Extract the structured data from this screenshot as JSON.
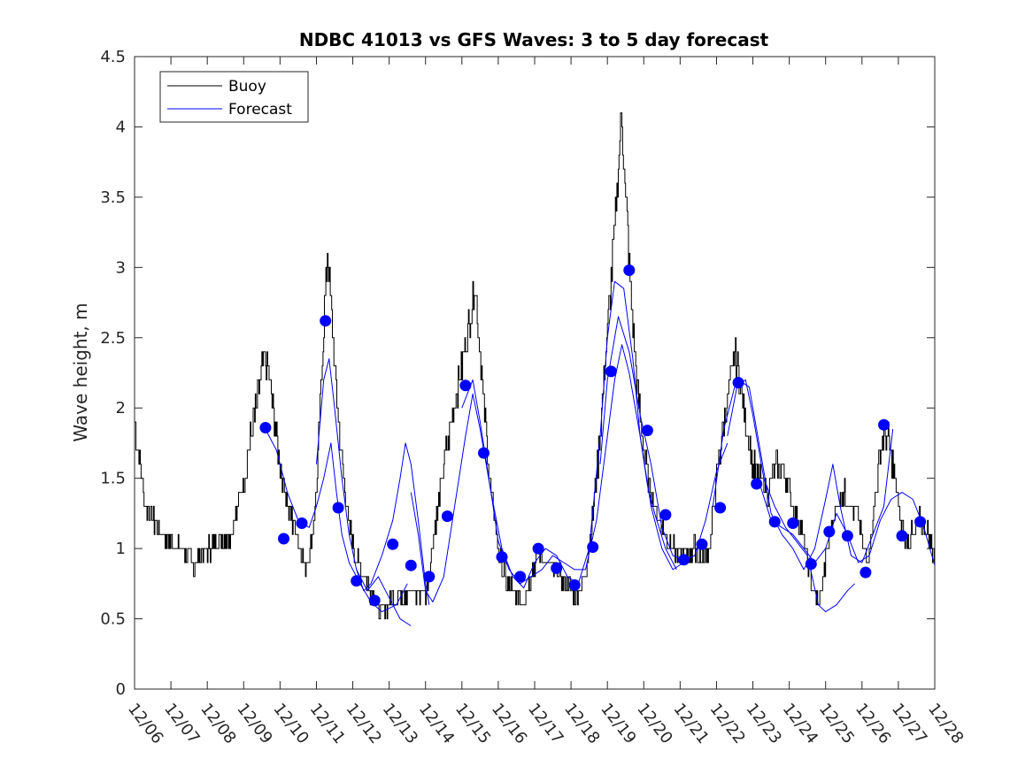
{
  "chart_data": {
    "type": "line",
    "title": "NDBC 41013 vs GFS Waves: 3 to 5 day forecast",
    "xlabel": "",
    "ylabel": "Wave height, m",
    "xlim": [
      0,
      22
    ],
    "ylim": [
      0,
      4.5
    ],
    "yticks": [
      0,
      0.5,
      1,
      1.5,
      2,
      2.5,
      3,
      3.5,
      4,
      4.5
    ],
    "xtick_labels": [
      "12/06",
      "12/07",
      "12/08",
      "12/09",
      "12/10",
      "12/11",
      "12/12",
      "12/13",
      "12/14",
      "12/15",
      "12/16",
      "12/17",
      "12/18",
      "12/19",
      "12/20",
      "12/21",
      "12/22",
      "12/23",
      "12/24",
      "12/25",
      "12/26",
      "12/27",
      "12/28"
    ],
    "legend": {
      "position": "top-left",
      "entries": [
        {
          "label": "Buoy",
          "color": "#000000"
        },
        {
          "label": "Forecast",
          "color": "#0000ff"
        }
      ]
    },
    "colors": {
      "buoy": "#000000",
      "forecast": "#0000ff",
      "markers": "#0000ff",
      "axis": "#262626"
    },
    "buoy_keypoints": [
      [
        0.0,
        1.9
      ],
      [
        0.1,
        1.7
      ],
      [
        0.2,
        1.5
      ],
      [
        0.3,
        1.3
      ],
      [
        0.5,
        1.2
      ],
      [
        0.8,
        1.1
      ],
      [
        1.0,
        1.05
      ],
      [
        1.3,
        1.0
      ],
      [
        1.5,
        0.95
      ],
      [
        1.6,
        0.85
      ],
      [
        1.8,
        0.95
      ],
      [
        2.0,
        1.0
      ],
      [
        2.3,
        1.05
      ],
      [
        2.6,
        1.1
      ],
      [
        2.8,
        1.25
      ],
      [
        3.0,
        1.5
      ],
      [
        3.2,
        1.8
      ],
      [
        3.4,
        2.1
      ],
      [
        3.55,
        2.35
      ],
      [
        3.7,
        2.2
      ],
      [
        3.85,
        1.9
      ],
      [
        4.0,
        1.6
      ],
      [
        4.2,
        1.3
      ],
      [
        4.4,
        1.15
      ],
      [
        4.6,
        1.0
      ],
      [
        4.7,
        0.85
      ],
      [
        4.8,
        0.95
      ],
      [
        5.0,
        1.4
      ],
      [
        5.1,
        2.0
      ],
      [
        5.2,
        2.6
      ],
      [
        5.3,
        3.1
      ],
      [
        5.4,
        2.7
      ],
      [
        5.55,
        2.1
      ],
      [
        5.7,
        1.6
      ],
      [
        5.85,
        1.25
      ],
      [
        6.0,
        1.0
      ],
      [
        6.2,
        0.85
      ],
      [
        6.5,
        0.7
      ],
      [
        6.7,
        0.55
      ],
      [
        6.9,
        0.6
      ],
      [
        7.2,
        0.65
      ],
      [
        7.5,
        0.7
      ],
      [
        7.8,
        0.68
      ],
      [
        8.0,
        0.7
      ],
      [
        8.1,
        0.85
      ],
      [
        8.2,
        1.05
      ],
      [
        8.35,
        1.3
      ],
      [
        8.5,
        1.6
      ],
      [
        8.65,
        1.8
      ],
      [
        8.8,
        2.05
      ],
      [
        9.0,
        2.3
      ],
      [
        9.2,
        2.6
      ],
      [
        9.35,
        2.9
      ],
      [
        9.5,
        2.4
      ],
      [
        9.65,
        1.85
      ],
      [
        9.8,
        1.4
      ],
      [
        9.95,
        1.1
      ],
      [
        10.1,
        0.85
      ],
      [
        10.3,
        0.72
      ],
      [
        10.5,
        0.68
      ],
      [
        10.7,
        0.65
      ],
      [
        10.9,
        0.8
      ],
      [
        11.1,
        1.0
      ],
      [
        11.3,
        0.9
      ],
      [
        11.5,
        0.85
      ],
      [
        11.7,
        0.82
      ],
      [
        11.9,
        0.72
      ],
      [
        12.1,
        0.68
      ],
      [
        12.3,
        0.72
      ],
      [
        12.5,
        1.0
      ],
      [
        12.7,
        1.5
      ],
      [
        12.9,
        2.2
      ],
      [
        13.1,
        2.9
      ],
      [
        13.25,
        3.5
      ],
      [
        13.38,
        4.1
      ],
      [
        13.5,
        3.5
      ],
      [
        13.65,
        2.8
      ],
      [
        13.8,
        2.2
      ],
      [
        14.0,
        1.7
      ],
      [
        14.2,
        1.4
      ],
      [
        14.4,
        1.2
      ],
      [
        14.6,
        1.1
      ],
      [
        14.8,
        1.0
      ],
      [
        15.0,
        0.95
      ],
      [
        15.2,
        0.95
      ],
      [
        15.4,
        1.0
      ],
      [
        15.6,
        0.9
      ],
      [
        15.8,
        1.0
      ],
      [
        16.0,
        1.5
      ],
      [
        16.2,
        1.9
      ],
      [
        16.4,
        2.2
      ],
      [
        16.5,
        2.4
      ],
      [
        16.65,
        2.2
      ],
      [
        16.8,
        1.9
      ],
      [
        17.0,
        1.6
      ],
      [
        17.2,
        1.5
      ],
      [
        17.4,
        1.4
      ],
      [
        17.6,
        1.55
      ],
      [
        17.8,
        1.6
      ],
      [
        17.95,
        1.45
      ],
      [
        18.1,
        1.3
      ],
      [
        18.3,
        1.15
      ],
      [
        18.5,
        0.95
      ],
      [
        18.65,
        0.7
      ],
      [
        18.8,
        0.6
      ],
      [
        18.95,
        0.8
      ],
      [
        19.1,
        1.1
      ],
      [
        19.3,
        1.3
      ],
      [
        19.5,
        1.4
      ],
      [
        19.7,
        1.3
      ],
      [
        19.9,
        1.2
      ],
      [
        20.0,
        1.05
      ],
      [
        20.15,
        0.9
      ],
      [
        20.3,
        1.2
      ],
      [
        20.45,
        1.6
      ],
      [
        20.6,
        1.85
      ],
      [
        20.75,
        1.75
      ],
      [
        20.9,
        1.5
      ],
      [
        21.05,
        1.2
      ],
      [
        21.2,
        1.05
      ],
      [
        21.4,
        1.1
      ],
      [
        21.6,
        1.2
      ],
      [
        21.8,
        1.1
      ],
      [
        22.0,
        0.95
      ]
    ],
    "forecast_series": [
      {
        "name": "Forecast",
        "points": [
          [
            3.6,
            1.85
          ],
          [
            3.9,
            1.7
          ],
          [
            4.2,
            1.4
          ],
          [
            4.5,
            1.2
          ],
          [
            4.8,
            1.15
          ],
          [
            5.0,
            1.3
          ],
          [
            5.2,
            1.5
          ],
          [
            5.4,
            1.75
          ],
          [
            5.55,
            1.4
          ],
          [
            5.7,
            1.1
          ],
          [
            5.9,
            0.9
          ],
          [
            6.2,
            0.75
          ],
          [
            6.5,
            0.62
          ],
          [
            6.8,
            0.55
          ],
          [
            7.2,
            0.6
          ],
          [
            7.5,
            0.75
          ]
        ]
      },
      {
        "name": "Forecast",
        "points": [
          [
            5.0,
            1.6
          ],
          [
            5.2,
            2.2
          ],
          [
            5.35,
            2.35
          ],
          [
            5.5,
            2.0
          ],
          [
            5.7,
            1.5
          ],
          [
            5.9,
            1.1
          ],
          [
            6.1,
            0.85
          ],
          [
            6.3,
            0.7
          ],
          [
            6.5,
            0.75
          ],
          [
            6.8,
            0.95
          ],
          [
            7.1,
            1.2
          ],
          [
            7.3,
            1.5
          ],
          [
            7.45,
            1.75
          ],
          [
            7.6,
            1.6
          ],
          [
            7.8,
            1.2
          ],
          [
            8.0,
            0.75
          ],
          [
            8.1,
            0.6
          ]
        ]
      },
      {
        "name": "Forecast",
        "points": [
          [
            6.1,
            0.85
          ],
          [
            6.4,
            0.7
          ],
          [
            6.7,
            0.8
          ],
          [
            7.0,
            0.65
          ],
          [
            7.3,
            0.5
          ],
          [
            7.6,
            0.45
          ]
        ]
      },
      {
        "name": "Forecast",
        "points": [
          [
            7.6,
            1.4
          ],
          [
            7.8,
            1.1
          ],
          [
            8.0,
            0.7
          ],
          [
            8.2,
            0.62
          ],
          [
            8.5,
            0.8
          ],
          [
            8.8,
            1.3
          ],
          [
            9.1,
            1.8
          ],
          [
            9.3,
            2.1
          ],
          [
            9.5,
            1.85
          ],
          [
            9.8,
            1.4
          ],
          [
            10.0,
            1.05
          ],
          [
            10.3,
            0.85
          ],
          [
            10.6,
            0.75
          ],
          [
            10.9,
            0.8
          ],
          [
            11.2,
            0.85
          ],
          [
            11.5,
            0.95
          ],
          [
            11.8,
            0.9
          ],
          [
            12.1,
            0.85
          ],
          [
            12.4,
            0.85
          ],
          [
            12.7,
            1.2
          ],
          [
            13.0,
            1.8
          ],
          [
            13.2,
            2.2
          ],
          [
            13.4,
            2.45
          ],
          [
            13.6,
            2.25
          ],
          [
            13.9,
            1.8
          ],
          [
            14.2,
            1.3
          ],
          [
            14.5,
            1.0
          ],
          [
            14.8,
            0.85
          ],
          [
            15.1,
            0.9
          ]
        ]
      },
      {
        "name": "Forecast",
        "points": [
          [
            9.0,
            2.0
          ],
          [
            9.3,
            2.2
          ],
          [
            9.5,
            1.9
          ],
          [
            9.8,
            1.4
          ],
          [
            10.1,
            1.0
          ],
          [
            10.4,
            0.8
          ],
          [
            10.7,
            0.72
          ],
          [
            11.0,
            0.9
          ],
          [
            11.3,
            1.0
          ],
          [
            11.6,
            0.95
          ],
          [
            11.9,
            0.8
          ],
          [
            12.2,
            0.75
          ],
          [
            12.5,
            1.0
          ],
          [
            12.8,
            1.8
          ],
          [
            13.0,
            2.5
          ],
          [
            13.2,
            2.9
          ],
          [
            13.45,
            2.85
          ],
          [
            13.7,
            2.35
          ],
          [
            13.9,
            1.8
          ],
          [
            14.1,
            1.45
          ],
          [
            14.3,
            1.25
          ],
          [
            14.6,
            1.0
          ],
          [
            14.9,
            0.85
          ]
        ]
      },
      {
        "name": "Forecast",
        "points": [
          [
            12.8,
            1.6
          ],
          [
            13.0,
            2.2
          ],
          [
            13.3,
            2.65
          ],
          [
            13.6,
            2.4
          ],
          [
            13.9,
            1.95
          ],
          [
            14.2,
            1.6
          ],
          [
            14.5,
            1.15
          ],
          [
            14.8,
            0.95
          ],
          [
            15.1,
            0.92
          ],
          [
            15.4,
            0.95
          ],
          [
            15.7,
            1.2
          ],
          [
            16.0,
            1.55
          ],
          [
            16.3,
            1.75
          ]
        ]
      },
      {
        "name": "Forecast",
        "points": [
          [
            15.9,
            1.3
          ],
          [
            16.2,
            1.85
          ],
          [
            16.5,
            2.15
          ],
          [
            16.8,
            2.2
          ],
          [
            17.0,
            1.95
          ],
          [
            17.3,
            1.5
          ],
          [
            17.6,
            1.3
          ],
          [
            17.9,
            1.15
          ],
          [
            18.2,
            1.05
          ],
          [
            18.5,
            0.95
          ],
          [
            18.8,
            0.6
          ],
          [
            19.0,
            0.55
          ],
          [
            19.3,
            0.6
          ],
          [
            19.6,
            0.7
          ],
          [
            19.8,
            0.75
          ]
        ]
      },
      {
        "name": "Forecast",
        "points": [
          [
            16.3,
            1.8
          ],
          [
            16.6,
            2.2
          ],
          [
            16.9,
            2.15
          ],
          [
            17.2,
            1.7
          ],
          [
            17.5,
            1.25
          ],
          [
            17.8,
            1.1
          ],
          [
            18.1,
            1.0
          ],
          [
            18.4,
            0.85
          ],
          [
            18.7,
            1.0
          ],
          [
            19.0,
            1.35
          ],
          [
            19.2,
            1.6
          ],
          [
            19.4,
            1.3
          ],
          [
            19.7,
            0.95
          ],
          [
            20.0,
            0.9
          ],
          [
            20.3,
            1.1
          ],
          [
            20.6,
            1.3
          ],
          [
            20.85,
            1.85
          ]
        ]
      },
      {
        "name": "Forecast",
        "points": [
          [
            17.2,
            1.45
          ],
          [
            17.5,
            1.2
          ],
          [
            17.8,
            1.15
          ],
          [
            18.1,
            1.1
          ],
          [
            18.4,
            1.0
          ],
          [
            18.7,
            0.9
          ],
          [
            19.0,
            1.0
          ],
          [
            19.3,
            1.25
          ],
          [
            19.6,
            1.1
          ],
          [
            19.9,
            0.9
          ],
          [
            20.2,
            0.95
          ],
          [
            20.5,
            1.2
          ],
          [
            20.8,
            1.35
          ],
          [
            21.1,
            1.4
          ],
          [
            21.4,
            1.35
          ],
          [
            21.7,
            1.15
          ],
          [
            22.0,
            0.88
          ]
        ]
      }
    ],
    "markers": [
      [
        3.6,
        1.86
      ],
      [
        4.1,
        1.07
      ],
      [
        4.6,
        1.18
      ],
      [
        5.25,
        2.62
      ],
      [
        5.6,
        1.29
      ],
      [
        6.1,
        0.77
      ],
      [
        6.6,
        0.63
      ],
      [
        7.1,
        1.03
      ],
      [
        7.6,
        0.88
      ],
      [
        8.1,
        0.8
      ],
      [
        8.6,
        1.23
      ],
      [
        9.1,
        2.16
      ],
      [
        9.6,
        1.68
      ],
      [
        10.1,
        0.94
      ],
      [
        10.6,
        0.8
      ],
      [
        11.1,
        1.0
      ],
      [
        11.6,
        0.86
      ],
      [
        12.1,
        0.74
      ],
      [
        12.6,
        1.01
      ],
      [
        13.1,
        2.26
      ],
      [
        13.6,
        2.98
      ],
      [
        14.1,
        1.84
      ],
      [
        14.6,
        1.24
      ],
      [
        15.1,
        0.92
      ],
      [
        15.6,
        1.03
      ],
      [
        16.1,
        1.29
      ],
      [
        16.6,
        2.18
      ],
      [
        17.1,
        1.46
      ],
      [
        17.6,
        1.19
      ],
      [
        18.1,
        1.18
      ],
      [
        18.6,
        0.89
      ],
      [
        19.1,
        1.12
      ],
      [
        19.6,
        1.09
      ],
      [
        20.1,
        0.83
      ],
      [
        20.6,
        1.88
      ],
      [
        21.1,
        1.09
      ],
      [
        21.6,
        1.19
      ]
    ]
  }
}
